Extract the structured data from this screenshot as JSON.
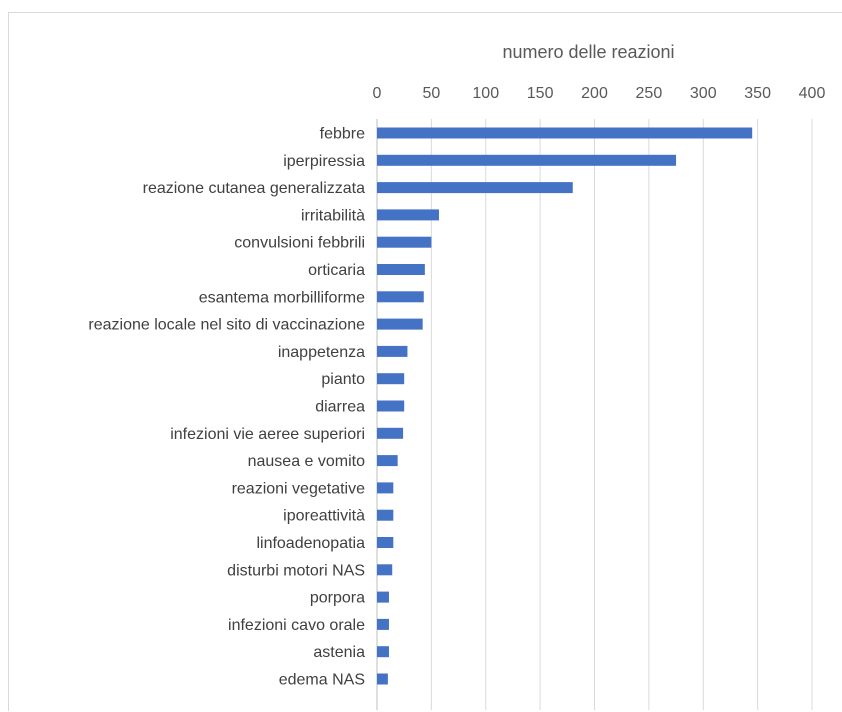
{
  "chart_data": {
    "type": "bar",
    "orientation": "horizontal",
    "xlabel": "numero delle reazioni",
    "xlim": [
      0,
      400
    ],
    "xticks": [
      0,
      50,
      100,
      150,
      200,
      250,
      300,
      350,
      400
    ],
    "x_axis_position": "top",
    "grid": true,
    "categories": [
      "febbre",
      "iperpiressia",
      "reazione cutanea generalizzata",
      "irritabilità",
      "convulsioni febbrili",
      "orticaria",
      "esantema morbilliforme",
      "reazione locale nel sito di vaccinazione",
      "inappetenza",
      "pianto",
      "diarrea",
      "infezioni vie aeree superiori",
      "nausea e vomito",
      "reazioni vegetative",
      "iporeattività",
      "linfoadenopatia",
      "disturbi motori NAS",
      "porpora",
      "infezioni cavo orale",
      "astenia",
      "edema NAS"
    ],
    "values": [
      345,
      275,
      180,
      57,
      50,
      44,
      43,
      42,
      28,
      25,
      25,
      24,
      19,
      15,
      15,
      15,
      14,
      11,
      11,
      11,
      10
    ],
    "colors": {
      "bar": "#4472c4",
      "grid": "#d9d9d9",
      "axis_line": "#bfbfbf",
      "text": "#595959",
      "category_text": "#404040"
    }
  }
}
